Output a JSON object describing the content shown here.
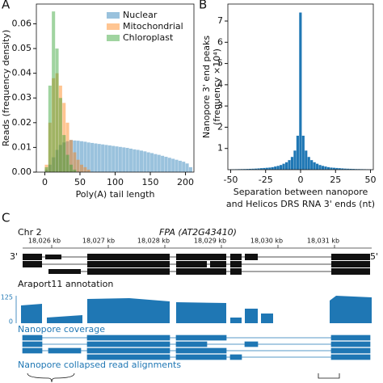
{
  "chart_data": [
    {
      "type": "histogram",
      "panel_label": "A",
      "xlabel": "Poly(A) tail length",
      "ylabel": "Reads (frequency density)",
      "bins": [
        0,
        5,
        10,
        15,
        20,
        25,
        30,
        35,
        40,
        45,
        50,
        55,
        60,
        65,
        70,
        75,
        80,
        85,
        90,
        95,
        100,
        105,
        110,
        115,
        120,
        125,
        130,
        135,
        140,
        145,
        150,
        155,
        160,
        165,
        170,
        175,
        180,
        185,
        190,
        195,
        200,
        205,
        210
      ],
      "series": [
        {
          "name": "Nuclear",
          "color": "#1f77b4",
          "values": [
            0.001,
            0.003,
            0.006,
            0.009,
            0.011,
            0.012,
            0.0125,
            0.013,
            0.0128,
            0.0127,
            0.0125,
            0.0123,
            0.012,
            0.0118,
            0.0116,
            0.0114,
            0.0112,
            0.011,
            0.0108,
            0.0106,
            0.0104,
            0.0102,
            0.01,
            0.0098,
            0.0095,
            0.0092,
            0.009,
            0.0087,
            0.0084,
            0.008,
            0.0077,
            0.0073,
            0.007,
            0.0066,
            0.0062,
            0.0058,
            0.0054,
            0.005,
            0.0046,
            0.0042,
            0.0035,
            0.002
          ]
        },
        {
          "name": "Mitochondrial",
          "color": "#ff7f0e",
          "values": [
            0.003,
            0.02,
            0.038,
            0.04,
            0.035,
            0.028,
            0.02,
            0.013,
            0.008,
            0.005,
            0.003,
            0.002,
            0.001,
            0,
            0,
            0,
            0,
            0,
            0,
            0,
            0,
            0,
            0,
            0,
            0,
            0,
            0,
            0,
            0,
            0,
            0,
            0,
            0,
            0,
            0,
            0,
            0,
            0,
            0,
            0,
            0,
            0
          ]
        },
        {
          "name": "Chloroplast",
          "color": "#2ca02c",
          "values": [
            0.002,
            0.035,
            0.065,
            0.05,
            0.03,
            0.015,
            0.007,
            0.003,
            0.001,
            0,
            0,
            0,
            0,
            0,
            0,
            0,
            0,
            0,
            0,
            0,
            0,
            0,
            0,
            0,
            0,
            0,
            0,
            0,
            0,
            0,
            0,
            0,
            0,
            0,
            0,
            0,
            0,
            0,
            0,
            0,
            0,
            0
          ]
        }
      ],
      "alpha": 0.45,
      "legend": "upper right",
      "grid": false,
      "xlim": [
        -12,
        212
      ],
      "xticks": [
        0,
        50,
        100,
        150,
        200
      ],
      "ylim": [
        0,
        0.068
      ],
      "yticks": [
        {
          "value": 0,
          "label": "0.00"
        },
        {
          "value": 0.01,
          "label": "0.01"
        },
        {
          "value": 0.02,
          "label": "0.02"
        },
        {
          "value": 0.03,
          "label": "0.03"
        },
        {
          "value": 0.04,
          "label": "0.04"
        },
        {
          "value": 0.05,
          "label": "0.05"
        },
        {
          "value": 0.06,
          "label": "0.06"
        }
      ]
    },
    {
      "type": "histogram",
      "panel_label": "B",
      "xlabel": [
        "Separation between nanopore",
        "and Helicos DRS RNA 3' ends (nt)"
      ],
      "ylabel": [
        "Nanopore 3' end peaks",
        "(frequency ×10⁴)"
      ],
      "bins": [
        -51,
        -49,
        -47,
        -45,
        -43,
        -41,
        -39,
        -37,
        -35,
        -33,
        -31,
        -29,
        -27,
        -25,
        -23,
        -21,
        -19,
        -17,
        -15,
        -13,
        -11,
        -9,
        -7,
        -5,
        -3,
        -1,
        1,
        3,
        5,
        7,
        9,
        11,
        13,
        15,
        17,
        19,
        21,
        23,
        25,
        27,
        29,
        31,
        33,
        35,
        37,
        39,
        41,
        43,
        45,
        47,
        49,
        51
      ],
      "series": [
        {
          "name": "Nanopore 3' end peaks",
          "color": "#1f77b4",
          "values": [
            0.018,
            0.02,
            0.022,
            0.025,
            0.028,
            0.03,
            0.035,
            0.04,
            0.045,
            0.05,
            0.06,
            0.07,
            0.08,
            0.09,
            0.1,
            0.12,
            0.15,
            0.18,
            0.22,
            0.28,
            0.35,
            0.45,
            0.6,
            0.9,
            1.6,
            7.4,
            1.6,
            0.9,
            0.6,
            0.45,
            0.35,
            0.28,
            0.22,
            0.18,
            0.15,
            0.12,
            0.1,
            0.09,
            0.08,
            0.07,
            0.06,
            0.05,
            0.045,
            0.04,
            0.035,
            0.03,
            0.028,
            0.025,
            0.022,
            0.02,
            0.018
          ]
        }
      ],
      "alpha": 1,
      "grid": false,
      "xlim": [
        -52,
        52
      ],
      "xticks": [
        -50,
        -25,
        0,
        25,
        50
      ],
      "ylim": [
        0,
        7.8
      ],
      "yticks": [
        1,
        2,
        3,
        4,
        5,
        6,
        7
      ]
    }
  ],
  "genome_browser": {
    "panel_label": "C",
    "chromosome": "Chr 2",
    "gene": "FPA (AT2G43410)",
    "coordinates": [
      "18,026 kb",
      "18,027 kb",
      "18,028 kb",
      "18,029 kb",
      "18,030 kb",
      "18,031 kb"
    ],
    "strand_left": "3'",
    "strand_right": "5'",
    "annotation_label": "Araport11 annotation",
    "coverage_max": 125,
    "coverage_min": 0,
    "coverage_label": "Nanopore coverage",
    "reads_label": "Nanopore collapsed read alignments"
  }
}
